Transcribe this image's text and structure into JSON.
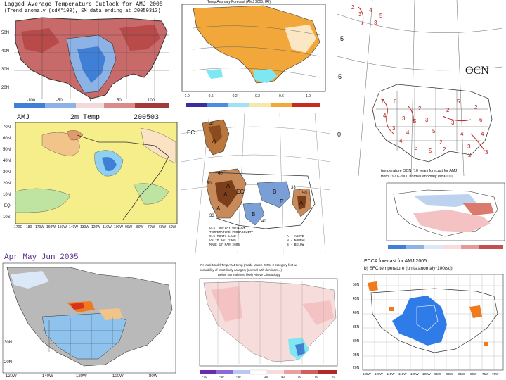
{
  "panels": {
    "lagged_avg": {
      "title": "Lagged Average Temperature Outlook for AMJ 2005",
      "subtitle": "(Trend anomaly (sdX*100), SM data ending at 20050313)",
      "colorbar_labels": [
        "-100",
        "-50",
        "0",
        "50",
        "100"
      ],
      "lat_labels": [
        "50N",
        "40N",
        "30N",
        "20N"
      ]
    },
    "top_center": {
      "title": "Temp Anomaly Forecast (AMJ 2005, IRI)",
      "colorbar_labels": [
        "-1.0",
        "-0.6",
        "-0.2",
        "0.2",
        "0.6",
        "1.0"
      ]
    },
    "ocn": {
      "label": "OCN",
      "caption_line1": "temperature OCN (10 year) forecast for AMJ",
      "caption_line2": "from 1971-2000 normal anomaly (sdX100)",
      "left_numbers": [
        "5",
        "0",
        "-5"
      ],
      "grid_numbers": [
        "2",
        "3",
        "4",
        "3",
        "5",
        "7",
        "6",
        "4",
        "3",
        "3",
        "4",
        "5",
        "2",
        "3",
        "5",
        "2",
        "2",
        "3",
        "4",
        "3",
        "2",
        "6",
        "4",
        "2",
        "5",
        "3",
        "4",
        "5",
        "3",
        "2"
      ]
    },
    "amj_2mtemp": {
      "title_left": "AMJ",
      "title_mid": "2m Temp",
      "title_right": "200503",
      "lat_labels": [
        "70N",
        "60N",
        "50N",
        "40N",
        "30N",
        "20N",
        "10N",
        "EQ",
        "10S"
      ],
      "lon_labels": [
        "170E",
        "180",
        "170W",
        "160W",
        "150W",
        "140W",
        "130W",
        "120W",
        "110W",
        "100W",
        "90W",
        "80W",
        "70W",
        "60W",
        "50W"
      ]
    },
    "ec_map": {
      "labels": [
        "EC",
        "EC",
        "A",
        "A",
        "B",
        "B",
        "A",
        "A",
        "A",
        "B"
      ],
      "footer_left": [
        "U.S. 90-DAY OUTLOOK",
        "TEMPERATURE PROBABILITY",
        "0.5 MONTH LEAD",
        "VALID AMJ 2005",
        "MADE 17 MAR 2005"
      ],
      "footer_right": [
        "A - ABOVE",
        "N - NORMAL",
        "B - BELOW"
      ],
      "contour_numbers": [
        "50",
        "40",
        "33",
        "40",
        "50",
        "40",
        "33"
      ]
    },
    "obs_amj": {
      "title": "Apr May Jun 2005",
      "lon_labels": [
        "120W",
        "140W",
        "120W",
        "100W",
        "80W"
      ],
      "lat_labels": [
        "20N",
        "30N"
      ]
    },
    "bottom_center": {
      "title_line1": "IRI Multi-Model Tmp AMJ temp (made March 2005) 2-category fcst w/",
      "title_line2": "probability of most likely category (normal with dominant...)",
      "title_line3": "Below Normal   Most likely   Above Climatology",
      "colorbar_labels": [
        "-70",
        "-50",
        "-40",
        "35",
        "40",
        "50",
        "60",
        "70"
      ]
    },
    "ecca": {
      "title_line1": "ECCA forecast for AMJ 2005",
      "title_line2": "b) SFC temperature (units:anomaly*100/sd)",
      "lat_labels": [
        "50N",
        "45N",
        "40N",
        "35N",
        "30N",
        "25N",
        "20N"
      ],
      "lon_labels": [
        "125W",
        "120W",
        "115W",
        "110W",
        "105W",
        "100W",
        "95W",
        "90W",
        "85W",
        "80W",
        "75W",
        "70W"
      ]
    }
  },
  "colors": {
    "warm_light": "#f4c2c2",
    "warm": "#d97a6d",
    "warm_dark": "#b5453a",
    "cool_light": "#bcd2ee",
    "cool": "#6a9ad8",
    "cool_dark": "#2f6bc9",
    "orange": "#f2a73a",
    "land_gray": "#b9b9b9",
    "yellow": "#f6ee8a",
    "cyan": "#7fe7f2",
    "ecca_blue": "#2f7be8",
    "ecca_orange": "#f07a1e"
  }
}
